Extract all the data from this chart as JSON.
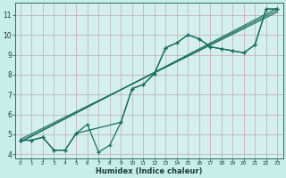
{
  "xlabel": "Humidex (Indice chaleur)",
  "bg_color": "#c8eee8",
  "plot_bg_color": "#d4f0ed",
  "grid_color": "#c0a8b0",
  "line_color": "#1a6e60",
  "xlim": [
    -0.5,
    23.5
  ],
  "ylim": [
    3.8,
    11.6
  ],
  "yticks": [
    4,
    5,
    6,
    7,
    8,
    9,
    10,
    11
  ],
  "xticks": [
    0,
    1,
    2,
    3,
    4,
    5,
    6,
    7,
    8,
    9,
    10,
    11,
    12,
    13,
    14,
    15,
    16,
    17,
    18,
    19,
    20,
    21,
    22,
    23
  ],
  "line1_x": [
    0,
    1,
    2,
    3,
    4,
    5,
    6,
    7,
    8,
    9,
    10,
    11,
    12,
    13,
    14,
    15,
    16,
    17,
    18,
    19,
    20,
    21,
    22,
    23
  ],
  "line1_y": [
    4.7,
    4.7,
    4.85,
    4.2,
    4.2,
    5.05,
    5.5,
    4.1,
    4.45,
    5.6,
    7.3,
    7.5,
    8.05,
    9.35,
    9.6,
    10.0,
    9.8,
    9.4,
    9.3,
    9.2,
    9.1,
    9.5,
    11.3,
    11.3
  ],
  "line2_x": [
    0,
    1,
    2,
    3,
    4,
    5,
    9,
    10,
    11,
    12,
    13,
    14,
    15,
    16,
    17,
    18,
    19,
    20,
    21,
    22,
    23
  ],
  "line2_y": [
    4.7,
    4.7,
    4.85,
    4.2,
    4.2,
    5.05,
    5.6,
    7.3,
    7.5,
    8.05,
    9.35,
    9.6,
    10.0,
    9.8,
    9.4,
    9.3,
    9.2,
    9.1,
    9.5,
    11.3,
    11.3
  ],
  "line3_x": [
    0,
    23
  ],
  "line3_y": [
    4.65,
    11.25
  ],
  "line4_x": [
    0,
    23
  ],
  "line4_y": [
    4.75,
    11.15
  ],
  "line5_x": [
    0,
    23
  ],
  "line5_y": [
    4.6,
    11.35
  ]
}
